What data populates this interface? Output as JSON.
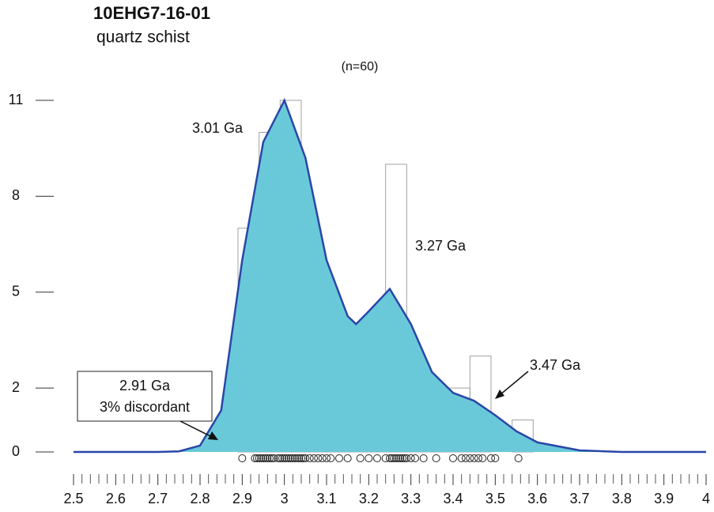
{
  "chart_data": {
    "type": "histogram",
    "title": "10EHG7-16-01",
    "subtitle": "quartz schist",
    "sample_size_label": "(n=60)",
    "bins": [
      2.89,
      2.94,
      2.99,
      3.04,
      3.09,
      3.14,
      3.19,
      3.24,
      3.29,
      3.34,
      3.39,
      3.44,
      3.49,
      3.54,
      3.59
    ],
    "counts": [
      7,
      10,
      11,
      5,
      3,
      2,
      4,
      9,
      2,
      1,
      2,
      3,
      0,
      1
    ],
    "bar_color": "#a0a0a0",
    "kde": {
      "x": [
        2.5,
        2.7,
        2.75,
        2.8,
        2.85,
        2.9,
        2.95,
        3.0,
        3.05,
        3.1,
        3.15,
        3.17,
        3.2,
        3.25,
        3.3,
        3.35,
        3.4,
        3.45,
        3.5,
        3.55,
        3.6,
        3.7,
        3.8,
        4.0
      ],
      "values": [
        0,
        0,
        0.02,
        0.2,
        1.3,
        6.0,
        9.7,
        11,
        9.2,
        6.0,
        4.25,
        4.0,
        4.4,
        5.1,
        4.0,
        2.5,
        1.85,
        1.6,
        1.15,
        0.65,
        0.3,
        0.05,
        0,
        0
      ],
      "line_color": "#2a46a8",
      "fill_color": "#69c9d9"
    },
    "ages": [
      2.9,
      2.93,
      2.94,
      2.945,
      2.95,
      2.955,
      2.96,
      2.965,
      2.97,
      2.975,
      2.985,
      2.99,
      2.995,
      3.0,
      3.005,
      3.01,
      3.015,
      3.02,
      3.025,
      3.03,
      3.035,
      3.04,
      3.045,
      3.05,
      3.06,
      3.07,
      3.08,
      3.09,
      3.1,
      3.11,
      3.13,
      3.15,
      3.18,
      3.2,
      3.22,
      3.24,
      3.25,
      3.255,
      3.26,
      3.265,
      3.27,
      3.275,
      3.28,
      3.285,
      3.29,
      3.3,
      3.31,
      3.33,
      3.36,
      3.4,
      3.42,
      3.43,
      3.44,
      3.45,
      3.46,
      3.47,
      3.49,
      3.5,
      3.555,
      2.935
    ],
    "xlim": [
      2.5,
      4
    ],
    "ylim": [
      0,
      11
    ],
    "xticks": [
      2.5,
      2.6,
      2.7,
      2.8,
      2.9,
      3,
      3.1,
      3.2,
      3.3,
      3.4,
      3.5,
      3.6,
      3.7,
      3.8,
      3.9,
      4
    ],
    "xminorticks": [
      2.52,
      2.54,
      2.56,
      2.58,
      2.62,
      2.64,
      2.66,
      2.68,
      2.72,
      2.74,
      2.76,
      2.78,
      2.82,
      2.84,
      2.86,
      2.88,
      2.92,
      2.94,
      2.96,
      2.98,
      3.02,
      3.04,
      3.06,
      3.08,
      3.12,
      3.14,
      3.16,
      3.18,
      3.22,
      3.24,
      3.26,
      3.28,
      3.32,
      3.34,
      3.36,
      3.38,
      3.42,
      3.44,
      3.46,
      3.48,
      3.52,
      3.54,
      3.56,
      3.58,
      3.62,
      3.64,
      3.66,
      3.68,
      3.72,
      3.74,
      3.76,
      3.78,
      3.82,
      3.84,
      3.86,
      3.88,
      3.92,
      3.94,
      3.96,
      3.98
    ],
    "yticks": [
      0,
      2,
      5,
      8,
      11
    ],
    "annotations": [
      {
        "text": "3.01 Ga"
      },
      {
        "text": "3.27 Ga"
      },
      {
        "text": "3.47 Ga"
      },
      {
        "text": "2.91 Ga"
      },
      {
        "text": "3% discordant"
      }
    ]
  }
}
